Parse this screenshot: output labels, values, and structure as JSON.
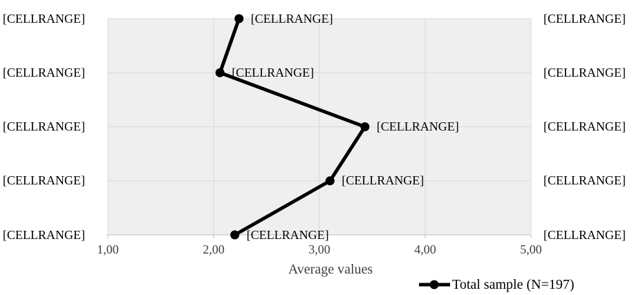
{
  "chart_data": {
    "type": "line",
    "subtype": "horizontal-dot-plot",
    "title": "",
    "xlabel": "Average values",
    "ylabel": "",
    "xlim": [
      1,
      5
    ],
    "x_tick_labels": [
      "1,00",
      "2,00",
      "3,00",
      "4,00",
      "5,00"
    ],
    "grid": true,
    "legend": {
      "label": "Total sample (N=197)",
      "position": "bottom-right"
    },
    "series_name": "Total sample (N=197)",
    "rows": [
      {
        "left_label": "[CELLRANGE]",
        "point_label": "[CELLRANGE]",
        "right_label": "[CELLRANGE]",
        "value": 2.24
      },
      {
        "left_label": "[CELLRANGE]",
        "point_label": "[CELLRANGE]",
        "right_label": "[CELLRANGE]",
        "value": 2.06
      },
      {
        "left_label": "[CELLRANGE]",
        "point_label": "[CELLRANGE]",
        "right_label": "[CELLRANGE]",
        "value": 3.43
      },
      {
        "left_label": "[CELLRANGE]",
        "point_label": "[CELLRANGE]",
        "right_label": "[CELLRANGE]",
        "value": 3.1
      },
      {
        "left_label": "[CELLRANGE]",
        "point_label": "[CELLRANGE]",
        "right_label": "[CELLRANGE]",
        "value": 2.2
      }
    ],
    "colors": {
      "line": "#000000",
      "marker": "#000000",
      "plot_bg": "#efefef",
      "gridline": "#d9d9d9",
      "axis_line": "#bfbfbf",
      "tick_text": "#404040",
      "label_text": "#000000"
    }
  }
}
